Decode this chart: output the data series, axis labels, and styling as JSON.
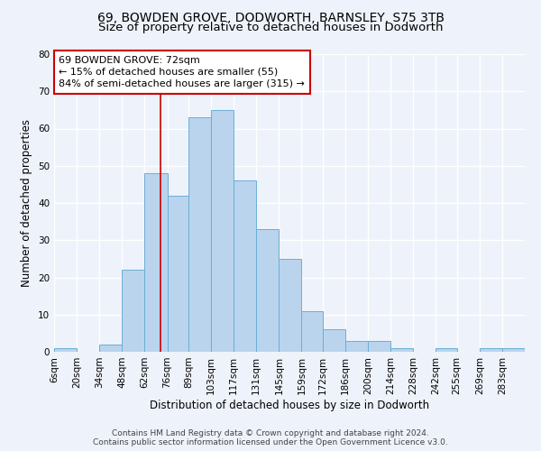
{
  "title1": "69, BOWDEN GROVE, DODWORTH, BARNSLEY, S75 3TB",
  "title2": "Size of property relative to detached houses in Dodworth",
  "xlabel": "Distribution of detached houses by size in Dodworth",
  "ylabel": "Number of detached properties",
  "categories": [
    "6sqm",
    "20sqm",
    "34sqm",
    "48sqm",
    "62sqm",
    "76sqm",
    "89sqm",
    "103sqm",
    "117sqm",
    "131sqm",
    "145sqm",
    "159sqm",
    "172sqm",
    "186sqm",
    "200sqm",
    "214sqm",
    "228sqm",
    "242sqm",
    "255sqm",
    "269sqm",
    "283sqm"
  ],
  "values": [
    1,
    0,
    2,
    22,
    48,
    42,
    63,
    65,
    46,
    33,
    25,
    11,
    6,
    3,
    3,
    1,
    0,
    1,
    0,
    1,
    1
  ],
  "bar_color": "#bad4ed",
  "bar_edge_color": "#6aaed6",
  "property_line_x": 72,
  "bin_edges": [
    6,
    20,
    34,
    48,
    62,
    76,
    89,
    103,
    117,
    131,
    145,
    159,
    172,
    186,
    200,
    214,
    228,
    242,
    255,
    269,
    283,
    297
  ],
  "annotation_text": "69 BOWDEN GROVE: 72sqm\n← 15% of detached houses are smaller (55)\n84% of semi-detached houses are larger (315) →",
  "annotation_box_color": "#ffffff",
  "annotation_box_edge": "#cc0000",
  "vline_color": "#cc0000",
  "ylim": [
    0,
    80
  ],
  "yticks": [
    0,
    10,
    20,
    30,
    40,
    50,
    60,
    70,
    80
  ],
  "footnote1": "Contains HM Land Registry data © Crown copyright and database right 2024.",
  "footnote2": "Contains public sector information licensed under the Open Government Licence v3.0.",
  "background_color": "#eef2fa",
  "grid_color": "#ffffff",
  "title1_fontsize": 10,
  "title2_fontsize": 9.5,
  "axis_label_fontsize": 8.5,
  "tick_fontsize": 7.5,
  "annotation_fontsize": 8,
  "footnote_fontsize": 6.5
}
